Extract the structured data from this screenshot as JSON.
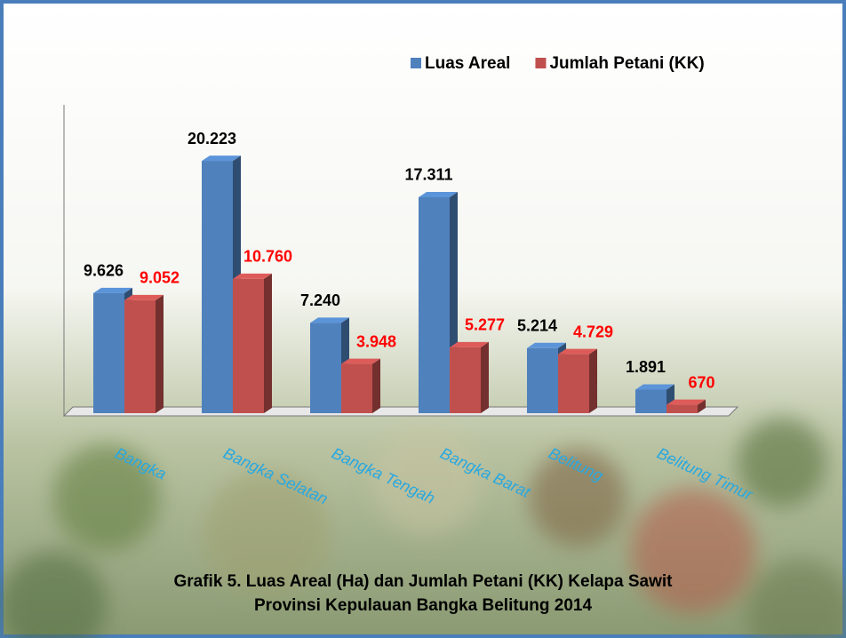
{
  "chart_data": {
    "type": "bar3d",
    "title": "Grafik 5.  Luas Areal (Ha) dan Jumlah Petani (KK) Kelapa Sawit",
    "subtitle": "Provinsi Kepulauan Bangka Belitung 2014",
    "categories": [
      "Bangka",
      "Bangka Selatan",
      "Bangka Tengah",
      "Bangka Barat",
      "Belitung",
      "Belitung Timur"
    ],
    "series": [
      {
        "name": "Luas Areal",
        "color": "#4f81bd",
        "label_color": "#000000",
        "values": [
          9626,
          20223,
          7240,
          17311,
          5214,
          1891
        ],
        "value_labels": [
          "9.626",
          "20.223",
          "7.240",
          "17.311",
          "5.214",
          "1.891"
        ]
      },
      {
        "name": "Jumlah Petani (KK)",
        "color": "#c0504d",
        "label_color": "#ff0000",
        "values": [
          9052,
          10760,
          3948,
          5277,
          4729,
          670
        ],
        "value_labels": [
          "9.052",
          "10.760",
          "3.948",
          "5.277",
          "4.729",
          "670"
        ]
      }
    ],
    "ylim": [
      0,
      25000
    ],
    "category_label_color": "#29a8e0",
    "legend": "top-right"
  }
}
